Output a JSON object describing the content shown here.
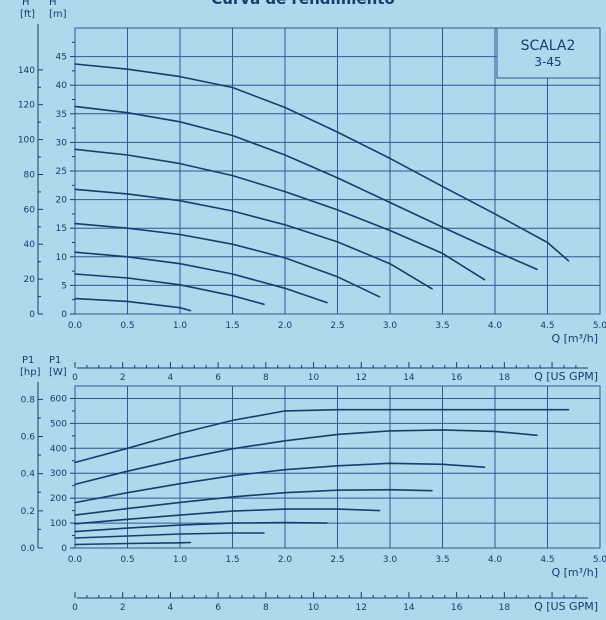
{
  "title": "Curva de rendimiento",
  "colors": {
    "background": "#aed8ec",
    "ink": "#173d6e",
    "grid": "#2b5b92"
  },
  "model": {
    "name": "SCALA2",
    "variant": "3-45"
  },
  "chart_data": [
    {
      "type": "line",
      "name": "head",
      "ylabel": "H",
      "ylabel_unit": "[m]",
      "y2label": "H",
      "y2label_unit": "[ft]",
      "xlabel": "Q [m³/h]",
      "x2label": "Q [US GPM]",
      "xlim": [
        0,
        5.0
      ],
      "ylim": [
        0,
        50
      ],
      "x_ticks": [
        "0.0",
        "0.5",
        "1.0",
        "1.5",
        "2.0",
        "2.5",
        "3.0",
        "3.5",
        "4.0",
        "4.5",
        "5.0"
      ],
      "y_ticks": [
        "0",
        "5",
        "10",
        "15",
        "20",
        "25",
        "30",
        "35",
        "40",
        "45"
      ],
      "y2_ticks": [
        "0",
        "20",
        "40",
        "60",
        "80",
        "100",
        "120",
        "140"
      ],
      "x2_ticks": [
        "0",
        "2",
        "4",
        "6",
        "8",
        "10",
        "12",
        "14",
        "16",
        "18"
      ],
      "series": [
        {
          "x": [
            0,
            0.5,
            1.0,
            1.5,
            2.0,
            2.5,
            3.0,
            3.5,
            4.0,
            4.5,
            4.7
          ],
          "y": [
            43.7,
            42.8,
            41.5,
            39.6,
            36.1,
            31.8,
            27.2,
            22.3,
            17.5,
            12.5,
            9.3
          ]
        },
        {
          "x": [
            0,
            0.5,
            1.0,
            1.5,
            2.0,
            2.5,
            3.0,
            3.5,
            4.0,
            4.4
          ],
          "y": [
            36.3,
            35.2,
            33.6,
            31.2,
            27.8,
            23.8,
            19.5,
            15.2,
            11.0,
            7.8
          ]
        },
        {
          "x": [
            0,
            0.5,
            1.0,
            1.5,
            2.0,
            2.5,
            3.0,
            3.5,
            3.9
          ],
          "y": [
            28.8,
            27.8,
            26.3,
            24.2,
            21.4,
            18.2,
            14.6,
            10.6,
            6.0
          ]
        },
        {
          "x": [
            0,
            0.5,
            1.0,
            1.5,
            2.0,
            2.5,
            3.0,
            3.4
          ],
          "y": [
            21.8,
            21.0,
            19.8,
            18.0,
            15.6,
            12.6,
            8.8,
            4.4
          ]
        },
        {
          "x": [
            0,
            0.5,
            1.0,
            1.5,
            2.0,
            2.5,
            2.9
          ],
          "y": [
            15.8,
            15.0,
            13.9,
            12.2,
            9.8,
            6.5,
            3.0
          ]
        },
        {
          "x": [
            0,
            0.5,
            1.0,
            1.5,
            2.0,
            2.4
          ],
          "y": [
            10.8,
            10.0,
            8.8,
            7.0,
            4.5,
            2.0
          ]
        },
        {
          "x": [
            0,
            0.5,
            1.0,
            1.5,
            1.8
          ],
          "y": [
            7.0,
            6.3,
            5.1,
            3.2,
            1.7
          ]
        },
        {
          "x": [
            0,
            0.5,
            1.0,
            1.1
          ],
          "y": [
            2.7,
            2.2,
            1.1,
            0.6
          ]
        }
      ]
    },
    {
      "type": "line",
      "name": "power",
      "ylabel": "P1",
      "ylabel_unit": "[W]",
      "y2label": "P1",
      "y2label_unit": "[hp]",
      "xlabel": "Q [m³/h]",
      "x2label": "Q [US GPM]",
      "xlim": [
        0,
        5.0
      ],
      "ylim": [
        0,
        650
      ],
      "x_ticks": [
        "0.0",
        "0.5",
        "1.0",
        "1.5",
        "2.0",
        "2.5",
        "3.0",
        "3.5",
        "4.0",
        "4.5",
        "5.0"
      ],
      "y_ticks": [
        "0",
        "100",
        "200",
        "300",
        "400",
        "500",
        "600"
      ],
      "y2_ticks": [
        "0.0",
        "0.2",
        "0.4",
        "0.6",
        "0.8"
      ],
      "x2_ticks": [
        "0",
        "2",
        "4",
        "6",
        "8",
        "10",
        "12",
        "14",
        "16",
        "18"
      ],
      "series": [
        {
          "x": [
            0,
            0.5,
            1.0,
            1.5,
            2.0,
            2.5,
            3.0,
            3.5,
            4.0,
            4.5,
            4.7
          ],
          "y": [
            343,
            400,
            460,
            512,
            550,
            555,
            555,
            555,
            555,
            555,
            555
          ]
        },
        {
          "x": [
            0,
            0.5,
            1.0,
            1.5,
            2.0,
            2.5,
            3.0,
            3.5,
            4.0,
            4.4
          ],
          "y": [
            255,
            308,
            356,
            398,
            430,
            456,
            470,
            474,
            468,
            452
          ]
        },
        {
          "x": [
            0,
            0.5,
            1.0,
            1.5,
            2.0,
            2.5,
            3.0,
            3.5,
            3.9
          ],
          "y": [
            182,
            222,
            258,
            290,
            314,
            330,
            340,
            336,
            324
          ]
        },
        {
          "x": [
            0,
            0.5,
            1.0,
            1.5,
            2.0,
            2.5,
            3.0,
            3.4
          ],
          "y": [
            132,
            158,
            183,
            205,
            222,
            232,
            234,
            230
          ]
        },
        {
          "x": [
            0,
            0.5,
            1.0,
            1.5,
            2.0,
            2.5,
            2.9
          ],
          "y": [
            97,
            115,
            132,
            148,
            156,
            156,
            150
          ]
        },
        {
          "x": [
            0,
            0.5,
            1.0,
            1.5,
            2.0,
            2.4
          ],
          "y": [
            66,
            80,
            92,
            100,
            102,
            100
          ]
        },
        {
          "x": [
            0,
            0.5,
            1.0,
            1.5,
            1.8
          ],
          "y": [
            40,
            48,
            56,
            60,
            60
          ]
        },
        {
          "x": [
            0,
            0.5,
            1.0,
            1.1
          ],
          "y": [
            14,
            18,
            21,
            22
          ]
        }
      ]
    }
  ]
}
